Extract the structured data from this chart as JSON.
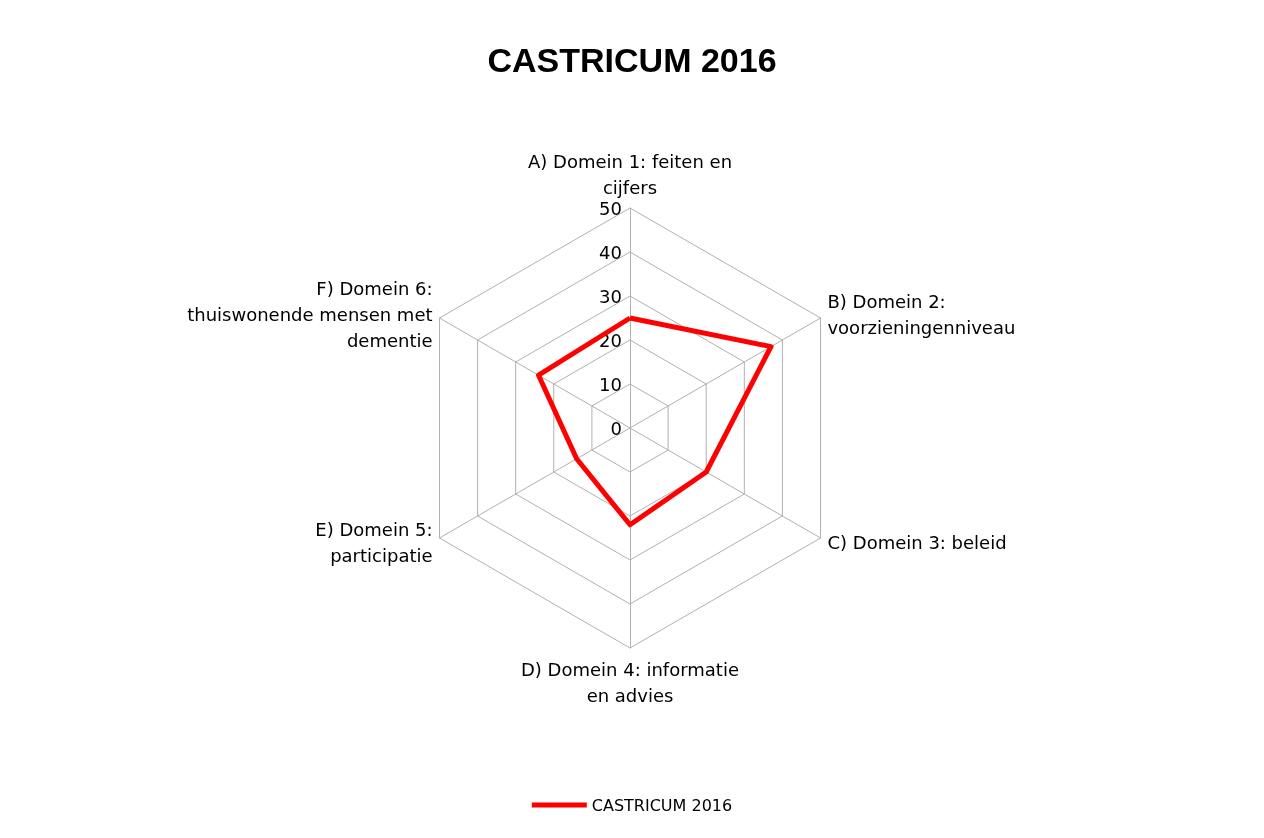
{
  "chart_data": {
    "type": "radar",
    "title": "CASTRICUM 2016",
    "categories": [
      "A) Domein 1: feiten en cijfers",
      "B) Domein 2: voorzieningenniveau",
      "C) Domein 3: beleid",
      "D) Domein 4: informatie en advies",
      "E) Domein 5: participatie",
      "F) Domein 6: thuiswonende mensen met dementie"
    ],
    "series": [
      {
        "name": "CASTRICUM 2016",
        "color": "#ff0000",
        "values": [
          25,
          37,
          20,
          22,
          14,
          24
        ]
      }
    ],
    "ylim": [
      0,
      50
    ],
    "yticks": [
      0,
      10,
      20,
      30,
      40,
      50
    ],
    "grid": true,
    "legend": "bottom",
    "marker": "none",
    "line_style": "solid"
  }
}
